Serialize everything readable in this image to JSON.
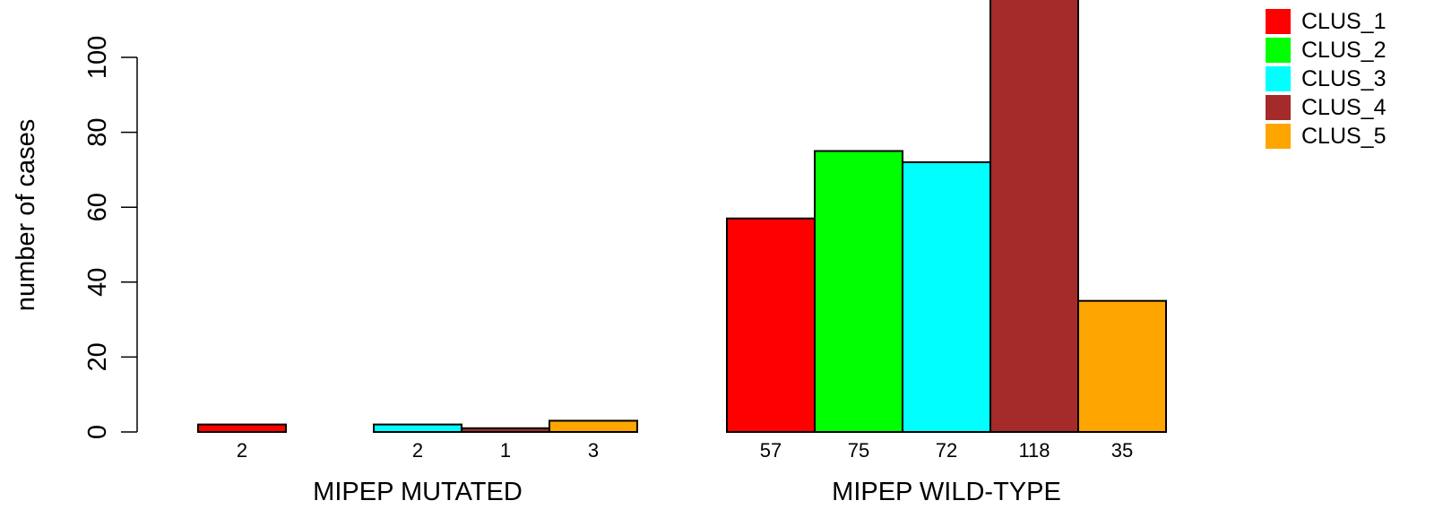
{
  "chart_data": {
    "type": "bar",
    "ylabel": "number of cases",
    "ylim": [
      0,
      100
    ],
    "yticks": [
      0,
      20,
      40,
      60,
      80,
      100
    ],
    "grid": false,
    "legend_position": "top-right",
    "categories": [
      "MIPEP MUTATED",
      "MIPEP WILD-TYPE"
    ],
    "series": [
      {
        "name": "CLUS_1",
        "color": "#ff0000",
        "values": [
          2,
          57
        ],
        "value_labels": [
          "2",
          "57"
        ]
      },
      {
        "name": "CLUS_2",
        "color": "#00ff00",
        "values": [
          0,
          75
        ],
        "value_labels": [
          "",
          "75"
        ]
      },
      {
        "name": "CLUS_3",
        "color": "#00ffff",
        "values": [
          2,
          72
        ],
        "value_labels": [
          "2",
          "72"
        ]
      },
      {
        "name": "CLUS_4",
        "color": "#a52a2a",
        "values": [
          1,
          118
        ],
        "value_labels": [
          "1",
          "118"
        ]
      },
      {
        "name": "CLUS_5",
        "color": "#ffa500",
        "values": [
          3,
          35
        ],
        "value_labels": [
          "3",
          "35"
        ]
      }
    ]
  }
}
